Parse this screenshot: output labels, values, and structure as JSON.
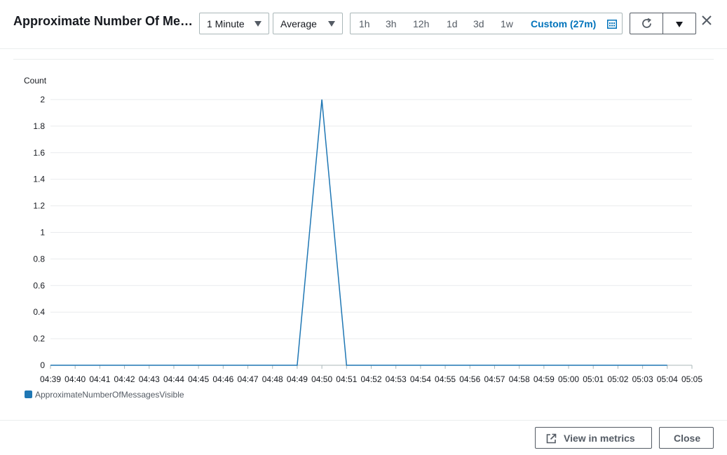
{
  "header": {
    "title": "Approximate Number Of Messages Visible",
    "period_select": "1 Minute",
    "statistic_select": "Average",
    "ranges": [
      "1h",
      "3h",
      "12h",
      "1d",
      "3d",
      "1w"
    ],
    "custom_range": "Custom (27m)"
  },
  "icons": {
    "calendar": "calendar-icon",
    "refresh": "refresh-icon",
    "more": "chevron-down-icon",
    "close": "close-icon",
    "external": "external-link-icon"
  },
  "colors": {
    "series": "#1f77b4",
    "accent": "#0073bb"
  },
  "chart_data": {
    "type": "line",
    "ylabel": "Count",
    "ylim": [
      0,
      2
    ],
    "yticks": [
      "0",
      "0.2",
      "0.4",
      "0.6",
      "0.8",
      "1",
      "1.2",
      "1.4",
      "1.6",
      "1.8",
      "2"
    ],
    "x_ticks": [
      "04:39",
      "04:40",
      "04:41",
      "04:42",
      "04:43",
      "04:44",
      "04:45",
      "04:46",
      "04:47",
      "04:48",
      "04:49",
      "04:50",
      "04:51",
      "04:52",
      "04:53",
      "04:54",
      "04:55",
      "04:56",
      "04:57",
      "04:58",
      "04:59",
      "05:00",
      "05:01",
      "05:02",
      "05:03",
      "05:04",
      "05:05"
    ],
    "series": [
      {
        "name": "ApproximateNumberOfMessagesVisible",
        "x": [
          "04:39",
          "04:40",
          "04:41",
          "04:42",
          "04:43",
          "04:44",
          "04:45",
          "04:46",
          "04:47",
          "04:48",
          "04:49",
          "04:50",
          "04:51",
          "04:52",
          "04:53",
          "04:54",
          "04:55",
          "04:56",
          "04:57",
          "04:58",
          "04:59",
          "05:00",
          "05:01",
          "05:02",
          "05:03",
          "05:04"
        ],
        "values": [
          0,
          0,
          0,
          0,
          0,
          0,
          0,
          0,
          0,
          0,
          0,
          2,
          0,
          0,
          0,
          0,
          0,
          0,
          0,
          0,
          0,
          0,
          0,
          0,
          0,
          0
        ]
      }
    ],
    "grid": true,
    "legend": "bottom-left"
  },
  "footer": {
    "view_in_metrics": "View in metrics",
    "close": "Close"
  }
}
